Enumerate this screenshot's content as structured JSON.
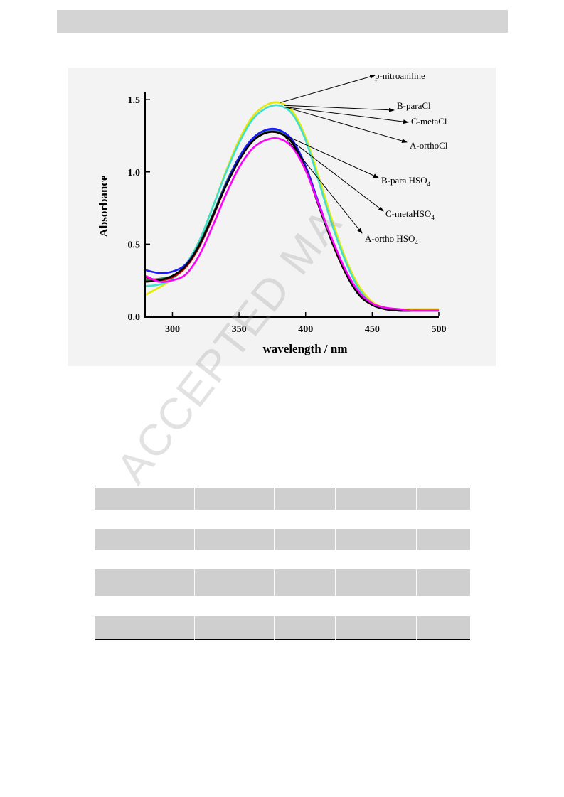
{
  "watermark": "ACCEPTED MA",
  "chart_data": {
    "type": "line",
    "xlabel": "wavelength / nm",
    "ylabel": "Absorbance",
    "xlim": [
      280,
      500
    ],
    "ylim": [
      0.0,
      1.55
    ],
    "xticks": [
      "300",
      "350",
      "400",
      "450",
      "500"
    ],
    "yticks": [
      "0.0",
      "0.5",
      "1.0",
      "1.5"
    ],
    "grid": false,
    "series": [
      {
        "name": "p-nitroaniline",
        "color": "#e8e800",
        "x": [
          280,
          290,
          300,
          310,
          320,
          330,
          340,
          350,
          360,
          370,
          380,
          390,
          400,
          410,
          420,
          430,
          440,
          450,
          460,
          470,
          480,
          490,
          500
        ],
        "y": [
          0.15,
          0.2,
          0.26,
          0.36,
          0.52,
          0.75,
          1.0,
          1.22,
          1.38,
          1.46,
          1.48,
          1.42,
          1.24,
          0.96,
          0.66,
          0.4,
          0.21,
          0.1,
          0.06,
          0.05,
          0.05,
          0.05,
          0.05
        ]
      },
      {
        "name": "B-paraCl",
        "color": "#40e0d0",
        "x": [
          280,
          290,
          300,
          310,
          320,
          330,
          340,
          350,
          360,
          370,
          380,
          390,
          400,
          410,
          420,
          430,
          440,
          450,
          460,
          470,
          480,
          490,
          500
        ],
        "y": [
          0.21,
          0.22,
          0.26,
          0.36,
          0.52,
          0.75,
          0.99,
          1.2,
          1.36,
          1.44,
          1.46,
          1.4,
          1.22,
          0.93,
          0.63,
          0.38,
          0.19,
          0.09,
          0.05,
          0.04,
          0.04,
          0.04,
          0.04
        ]
      },
      {
        "name": "C-metaCl",
        "color": "#2e8b57",
        "x": [
          280,
          290,
          300,
          310,
          320,
          330,
          340,
          350,
          360,
          370,
          380,
          390,
          400,
          410,
          420,
          430,
          440,
          450,
          460,
          470,
          480,
          490,
          500
        ],
        "y": [
          0.25,
          0.26,
          0.28,
          0.35,
          0.5,
          0.7,
          0.92,
          1.1,
          1.22,
          1.28,
          1.28,
          1.21,
          1.03,
          0.77,
          0.52,
          0.31,
          0.16,
          0.08,
          0.05,
          0.04,
          0.04,
          0.04,
          0.04
        ]
      },
      {
        "name": "A-orthoCl",
        "color": "#cc0000",
        "x": [
          280,
          290,
          300,
          310,
          320,
          330,
          340,
          350,
          360,
          370,
          380,
          390,
          400,
          410,
          420,
          430,
          440,
          450,
          460,
          470,
          480,
          490,
          500
        ],
        "y": [
          0.27,
          0.25,
          0.27,
          0.34,
          0.48,
          0.68,
          0.9,
          1.08,
          1.21,
          1.27,
          1.27,
          1.2,
          1.02,
          0.77,
          0.51,
          0.3,
          0.15,
          0.08,
          0.05,
          0.04,
          0.04,
          0.04,
          0.04
        ]
      },
      {
        "name": "B-para HSO4",
        "color": "#1a1aff",
        "x": [
          280,
          290,
          300,
          310,
          320,
          330,
          340,
          350,
          360,
          370,
          380,
          390,
          400,
          410,
          420,
          430,
          440,
          450,
          460,
          470,
          480,
          490,
          500
        ],
        "y": [
          0.32,
          0.3,
          0.31,
          0.36,
          0.49,
          0.69,
          0.91,
          1.1,
          1.23,
          1.29,
          1.29,
          1.22,
          1.04,
          0.78,
          0.52,
          0.31,
          0.16,
          0.08,
          0.05,
          0.04,
          0.04,
          0.04,
          0.04
        ]
      },
      {
        "name": "C-metaHSO4",
        "color": "#000000",
        "x": [
          280,
          290,
          300,
          310,
          320,
          330,
          340,
          350,
          360,
          370,
          380,
          390,
          400,
          410,
          420,
          430,
          440,
          450,
          460,
          470,
          480,
          490,
          500
        ],
        "y": [
          0.24,
          0.25,
          0.28,
          0.35,
          0.49,
          0.69,
          0.9,
          1.08,
          1.21,
          1.27,
          1.27,
          1.2,
          1.02,
          0.76,
          0.51,
          0.3,
          0.15,
          0.08,
          0.05,
          0.04,
          0.04,
          0.04,
          0.04
        ]
      },
      {
        "name": "A-ortho HSO4",
        "color": "#ff00ff",
        "x": [
          280,
          290,
          300,
          310,
          320,
          330,
          340,
          350,
          360,
          370,
          380,
          390,
          400,
          410,
          420,
          430,
          440,
          450,
          460,
          470,
          480,
          490,
          500
        ],
        "y": [
          0.28,
          0.24,
          0.25,
          0.29,
          0.42,
          0.62,
          0.84,
          1.03,
          1.16,
          1.22,
          1.23,
          1.17,
          1.01,
          0.77,
          0.53,
          0.32,
          0.17,
          0.09,
          0.06,
          0.05,
          0.04,
          0.04,
          0.04
        ]
      }
    ],
    "annotations": [
      {
        "text": "p-nitroaniline",
        "sub": "",
        "target": [
          381,
          1.48
        ]
      },
      {
        "text": "B-paraCl",
        "sub": "",
        "target": [
          384,
          1.46
        ]
      },
      {
        "text": "C-metaCl",
        "sub": "",
        "target": [
          384,
          1.45
        ]
      },
      {
        "text": "A-orthoCl",
        "sub": "",
        "target": [
          384,
          1.45
        ]
      },
      {
        "text": "B-para HSO",
        "sub": "4",
        "target": [
          383,
          1.26
        ]
      },
      {
        "text": "C-metaHSO",
        "sub": "4",
        "target": [
          383,
          1.26
        ]
      },
      {
        "text": "A-ortho HSO",
        "sub": "4",
        "target": [
          383,
          1.26
        ]
      }
    ]
  }
}
